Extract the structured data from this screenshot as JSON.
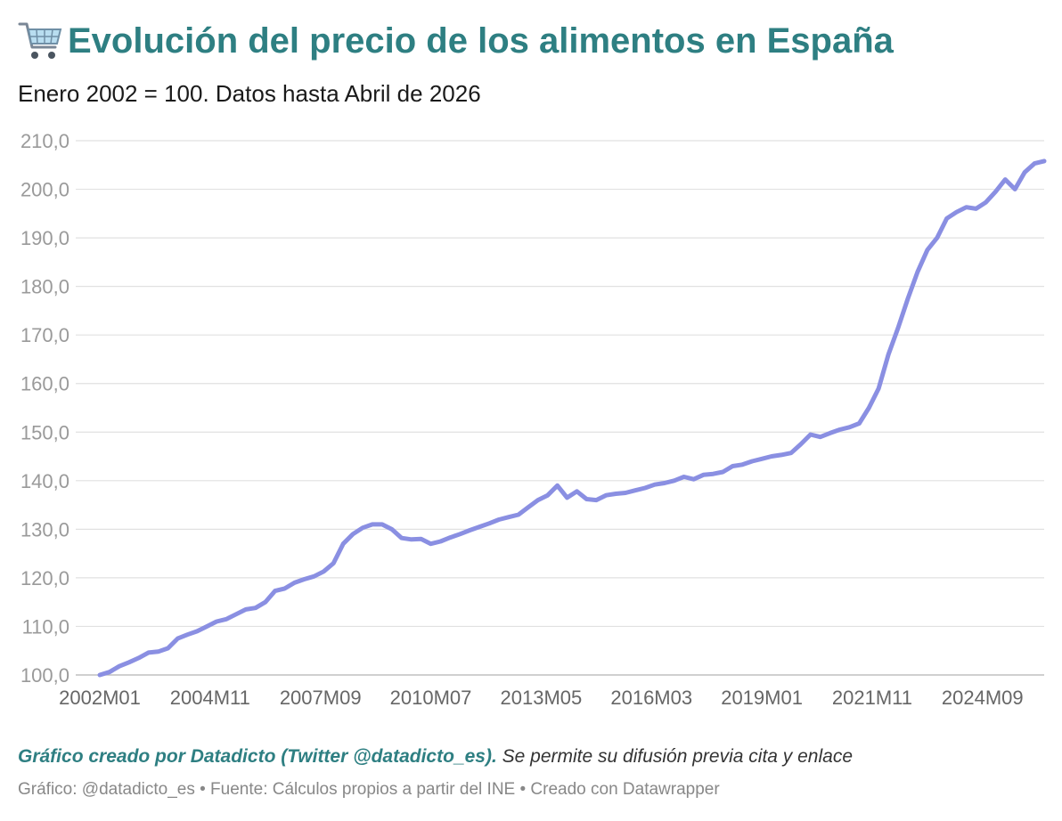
{
  "header": {
    "title": "Evolución del precio de los alimentos en España",
    "subtitle": "Enero 2002 = 100. Datos hasta Abril de 2026",
    "icon": "shopping-cart-icon"
  },
  "footer": {
    "credit": "Gráfico creado por Datadicto (Twitter @datadicto_es).",
    "note": "Se permite su difusión previa cita y enlace",
    "source": "Gráfico: @datadicto_es • Fuente: Cálculos propios a partir del INE • Creado con Datawrapper"
  },
  "colors": {
    "line": "#8a8fe2",
    "title": "#2e7f82",
    "grid": "#e1e1e1",
    "axis_text": "#9a9a9a"
  },
  "chart_data": {
    "type": "line",
    "title": "Evolución del precio de los alimentos en España",
    "subtitle": "Enero 2002 = 100. Datos hasta Abril de 2026",
    "xlabel": "",
    "ylabel": "",
    "ylim": [
      100,
      210
    ],
    "yticks": [
      100,
      110,
      120,
      130,
      140,
      150,
      160,
      170,
      180,
      190,
      200,
      210
    ],
    "ytick_labels": [
      "100,0",
      "110,0",
      "120,0",
      "130,0",
      "140,0",
      "150,0",
      "160,0",
      "170,0",
      "180,0",
      "190,0",
      "200,0",
      "210,0"
    ],
    "xticks": [
      "2002M01",
      "2004M11",
      "2007M09",
      "2010M07",
      "2013M05",
      "2016M03",
      "2019M01",
      "2021M11",
      "2024M09"
    ],
    "grid": true,
    "legend": "none",
    "series": [
      {
        "points": [
          [
            "2002M01",
            100.0
          ],
          [
            "2002M04",
            100.6
          ],
          [
            "2002M07",
            101.8
          ],
          [
            "2002M10",
            102.6
          ],
          [
            "2003M01",
            103.5
          ],
          [
            "2003M04",
            104.6
          ],
          [
            "2003M07",
            104.8
          ],
          [
            "2003M10",
            105.5
          ],
          [
            "2004M01",
            107.5
          ],
          [
            "2004M04",
            108.3
          ],
          [
            "2004M07",
            109.0
          ],
          [
            "2004M10",
            110.0
          ],
          [
            "2005M01",
            111.0
          ],
          [
            "2005M04",
            111.5
          ],
          [
            "2005M07",
            112.5
          ],
          [
            "2005M10",
            113.5
          ],
          [
            "2006M01",
            113.8
          ],
          [
            "2006M04",
            115.0
          ],
          [
            "2006M07",
            117.3
          ],
          [
            "2006M10",
            117.8
          ],
          [
            "2007M01",
            119.0
          ],
          [
            "2007M04",
            119.7
          ],
          [
            "2007M07",
            120.3
          ],
          [
            "2007M10",
            121.3
          ],
          [
            "2008M01",
            123.0
          ],
          [
            "2008M04",
            127.0
          ],
          [
            "2008M07",
            129.0
          ],
          [
            "2008M10",
            130.3
          ],
          [
            "2009M01",
            131.0
          ],
          [
            "2009M04",
            131.0
          ],
          [
            "2009M07",
            130.0
          ],
          [
            "2009M10",
            128.2
          ],
          [
            "2010M01",
            127.9
          ],
          [
            "2010M04",
            128.0
          ],
          [
            "2010M07",
            127.0
          ],
          [
            "2010M10",
            127.5
          ],
          [
            "2011M01",
            128.3
          ],
          [
            "2011M04",
            129.0
          ],
          [
            "2011M07",
            129.8
          ],
          [
            "2011M10",
            130.5
          ],
          [
            "2012M01",
            131.2
          ],
          [
            "2012M04",
            132.0
          ],
          [
            "2012M07",
            132.5
          ],
          [
            "2012M10",
            133.0
          ],
          [
            "2013M01",
            134.5
          ],
          [
            "2013M04",
            136.0
          ],
          [
            "2013M07",
            137.0
          ],
          [
            "2013M10",
            139.0
          ],
          [
            "2014M01",
            136.5
          ],
          [
            "2014M04",
            137.8
          ],
          [
            "2014M07",
            136.2
          ],
          [
            "2014M10",
            136.0
          ],
          [
            "2015M01",
            137.0
          ],
          [
            "2015M04",
            137.3
          ],
          [
            "2015M07",
            137.5
          ],
          [
            "2015M10",
            138.0
          ],
          [
            "2016M01",
            138.5
          ],
          [
            "2016M04",
            139.2
          ],
          [
            "2016M07",
            139.5
          ],
          [
            "2016M10",
            140.0
          ],
          [
            "2017M01",
            140.8
          ],
          [
            "2017M04",
            140.3
          ],
          [
            "2017M07",
            141.2
          ],
          [
            "2017M10",
            141.4
          ],
          [
            "2018M01",
            141.8
          ],
          [
            "2018M04",
            143.0
          ],
          [
            "2018M07",
            143.3
          ],
          [
            "2018M10",
            144.0
          ],
          [
            "2019M01",
            144.5
          ],
          [
            "2019M04",
            145.0
          ],
          [
            "2019M07",
            145.3
          ],
          [
            "2019M10",
            145.7
          ],
          [
            "2020M01",
            147.5
          ],
          [
            "2020M04",
            149.5
          ],
          [
            "2020M07",
            149.0
          ],
          [
            "2020M10",
            149.8
          ],
          [
            "2021M01",
            150.5
          ],
          [
            "2021M04",
            151.0
          ],
          [
            "2021M07",
            151.8
          ],
          [
            "2021M10",
            155.0
          ],
          [
            "2022M01",
            159.0
          ],
          [
            "2022M04",
            166.0
          ],
          [
            "2022M07",
            171.5
          ],
          [
            "2022M10",
            177.5
          ],
          [
            "2023M01",
            183.0
          ],
          [
            "2023M04",
            187.5
          ],
          [
            "2023M07",
            190.0
          ],
          [
            "2023M10",
            194.0
          ],
          [
            "2024M01",
            195.3
          ],
          [
            "2024M04",
            196.3
          ],
          [
            "2024M07",
            196.0
          ],
          [
            "2024M10",
            197.3
          ],
          [
            "2025M01",
            199.5
          ],
          [
            "2025M04",
            202.0
          ],
          [
            "2025M07",
            200.0
          ],
          [
            "2025M10",
            203.5
          ],
          [
            "2026M01",
            205.3
          ],
          [
            "2026M04",
            205.8
          ]
        ]
      }
    ]
  }
}
